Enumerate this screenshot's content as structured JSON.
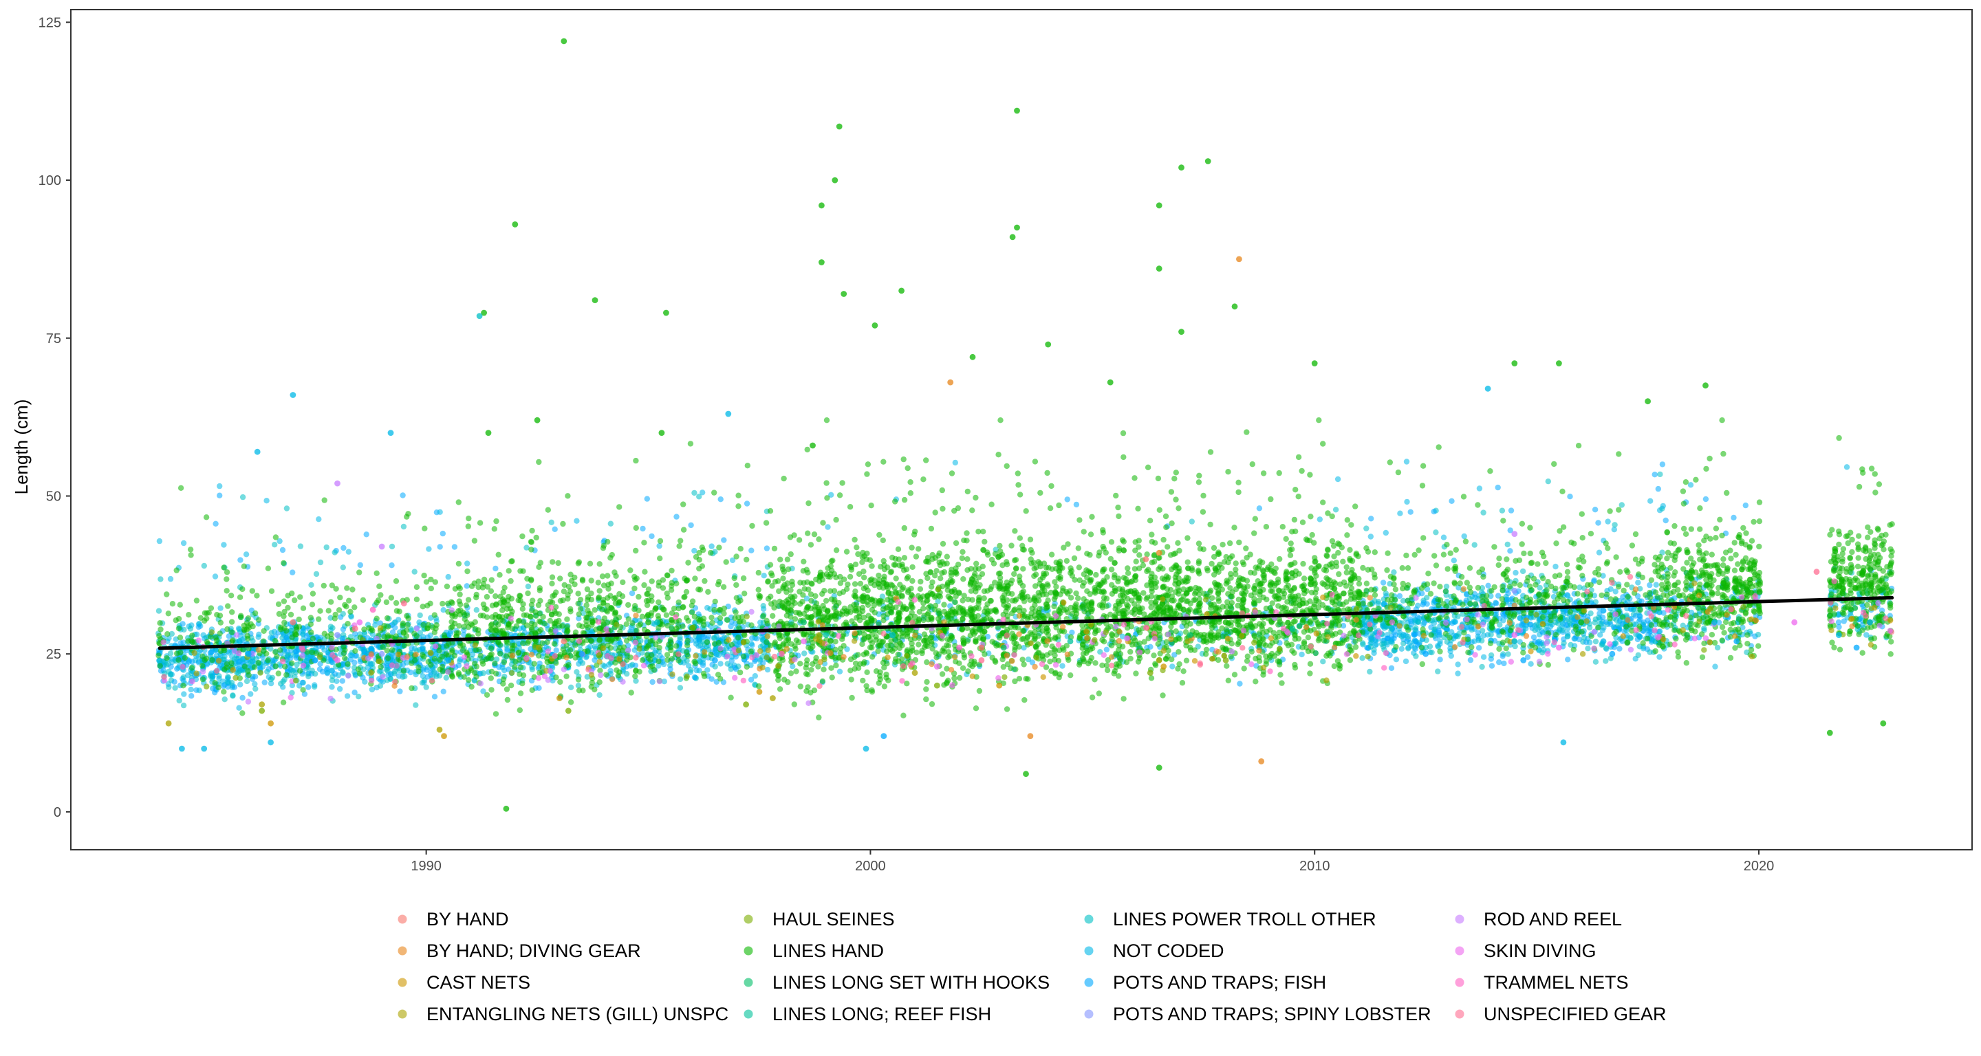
{
  "chart_data": {
    "type": "scatter",
    "title": "",
    "xlabel": "",
    "ylabel": "Length (cm)",
    "xlim": [
      1982.0,
      2024.8
    ],
    "ylim": [
      -6,
      127
    ],
    "x_ticks": [
      1990,
      2000,
      2010,
      2020
    ],
    "y_ticks": [
      0,
      25,
      50,
      75,
      100,
      125
    ],
    "grid": false,
    "legend": {
      "position": "bottom",
      "columns": 4
    },
    "trend_line": {
      "x": [
        1984,
        2023
      ],
      "y": [
        25.9,
        33.9
      ],
      "color": "#000000"
    },
    "series": [
      {
        "name": "BY HAND",
        "color": "#F8766D",
        "points": [
          [
            1987.0,
            30
          ],
          [
            1993.1,
            27
          ],
          [
            2002.5,
            26
          ],
          [
            2006.2,
            40
          ]
        ]
      },
      {
        "name": "BY HAND; DIVING GEAR",
        "color": "#E7861B",
        "points": [
          [
            2001.8,
            68
          ],
          [
            2006.5,
            41
          ],
          [
            2008.3,
            87.5
          ],
          [
            2008.8,
            8
          ],
          [
            2003.6,
            12
          ]
        ]
      },
      {
        "name": "CAST NETS",
        "color": "#CD9600",
        "points": [
          [
            1986.5,
            14
          ],
          [
            1990.4,
            12
          ],
          [
            1993.0,
            18
          ],
          [
            1997.5,
            19
          ],
          [
            2002.9,
            20
          ],
          [
            2006.6,
            23
          ]
        ]
      },
      {
        "name": "ENTANGLING NETS (GILL) UNSPC",
        "color": "#ABA300",
        "points": [
          [
            1984.2,
            14
          ],
          [
            1986.3,
            17
          ],
          [
            1990.3,
            13
          ],
          [
            1997.8,
            18
          ],
          [
            2001.0,
            22
          ],
          [
            2006.5,
            24
          ]
        ]
      },
      {
        "name": "HAUL SEINES",
        "color": "#7CAE00",
        "points": [
          [
            1986.3,
            16
          ],
          [
            1993.2,
            16
          ],
          [
            1997.2,
            17
          ],
          [
            2001.5,
            20
          ],
          [
            2006.3,
            22
          ],
          [
            2008.0,
            24
          ]
        ]
      },
      {
        "name": "LINES HAND",
        "color": "#0CB702",
        "points": [
          [
            1991.8,
            0.5
          ],
          [
            1993.1,
            122
          ],
          [
            1992.0,
            93
          ],
          [
            1991.3,
            79
          ],
          [
            1993.8,
            81
          ],
          [
            1995.4,
            79
          ],
          [
            1999.3,
            108.5
          ],
          [
            1999.2,
            100
          ],
          [
            1998.9,
            96
          ],
          [
            1998.9,
            87
          ],
          [
            1999.4,
            82
          ],
          [
            2000.1,
            77
          ],
          [
            2000.7,
            82.5
          ],
          [
            2003.3,
            111
          ],
          [
            2003.3,
            92.5
          ],
          [
            2003.2,
            91
          ],
          [
            2006.5,
            96
          ],
          [
            2006.5,
            86
          ],
          [
            2007.0,
            102
          ],
          [
            2007.6,
            103
          ],
          [
            2007.0,
            76
          ],
          [
            2008.2,
            80
          ],
          [
            2010.0,
            71
          ],
          [
            2014.5,
            71
          ],
          [
            2015.5,
            71
          ],
          [
            2017.5,
            65
          ],
          [
            2018.8,
            67.5
          ],
          [
            2003.5,
            6
          ],
          [
            2006.5,
            7
          ],
          [
            2022.8,
            14
          ],
          [
            2021.6,
            12.5
          ],
          [
            1991.4,
            60
          ],
          [
            1992.5,
            62
          ],
          [
            1995.3,
            60
          ],
          [
            1998.7,
            58
          ],
          [
            2002.3,
            72
          ],
          [
            2004.0,
            74
          ],
          [
            2005.4,
            68
          ],
          [
            2000.6,
            30
          ],
          [
            2004.5,
            30
          ],
          [
            2008.0,
            30
          ],
          [
            2010.5,
            34
          ],
          [
            2012.0,
            31
          ],
          [
            2014.0,
            30
          ],
          [
            2016.0,
            30
          ],
          [
            2018.5,
            34
          ],
          [
            2019.5,
            35
          ],
          [
            2022.5,
            30
          ],
          [
            1995.0,
            30
          ]
        ]
      },
      {
        "name": "LINES LONG SET WITH HOOKS",
        "color": "#00BE67",
        "points": [
          [
            1998.5,
            30
          ],
          [
            2003.0,
            26
          ],
          [
            2007.2,
            28
          ]
        ]
      },
      {
        "name": "LINES LONG; REEF FISH",
        "color": "#00C19A",
        "points": [
          [
            1999.0,
            28
          ],
          [
            2004.5,
            27
          ],
          [
            2009.5,
            29
          ]
        ]
      },
      {
        "name": "LINES POWER TROLL OTHER",
        "color": "#00BFC4",
        "points": [
          [
            1991.2,
            78.5
          ],
          [
            1995.2,
            30
          ],
          [
            2000.5,
            28
          ]
        ]
      },
      {
        "name": "NOT CODED",
        "color": "#00B8E7",
        "points": [
          [
            1984.5,
            10
          ],
          [
            1985.0,
            10
          ],
          [
            1986.5,
            11
          ],
          [
            1987.0,
            66
          ],
          [
            1996.8,
            63
          ],
          [
            2013.9,
            67
          ],
          [
            1999.9,
            10
          ],
          [
            2015.6,
            11
          ],
          [
            1989.2,
            60
          ],
          [
            1986.2,
            57
          ],
          [
            1985.8,
            27
          ],
          [
            1993.0,
            28
          ],
          [
            2012.0,
            28
          ],
          [
            2014.5,
            27
          ],
          [
            2016.5,
            27
          ],
          [
            2019.0,
            30
          ],
          [
            2021.8,
            28
          ],
          [
            2022.5,
            30
          ]
        ]
      },
      {
        "name": "POTS AND TRAPS; FISH",
        "color": "#00A9FF",
        "points": [
          [
            1986.0,
            25
          ],
          [
            1987.5,
            24
          ],
          [
            1990.5,
            24
          ],
          [
            1993.5,
            25
          ],
          [
            1996.5,
            24
          ],
          [
            2000.3,
            12
          ],
          [
            2012.5,
            25
          ],
          [
            2014.7,
            24
          ],
          [
            2016.7,
            25
          ],
          [
            2019.5,
            27
          ],
          [
            2022.2,
            26
          ]
        ]
      },
      {
        "name": "POTS AND TRAPS; SPINY LOBSTER",
        "color": "#8494FF",
        "points": [
          [
            1988.0,
            28
          ],
          [
            1989.0,
            25
          ],
          [
            2014.5,
            35
          ]
        ]
      },
      {
        "name": "ROD AND REEL",
        "color": "#C77CFF",
        "points": [
          [
            1988.0,
            52
          ],
          [
            1989.0,
            42
          ],
          [
            2014.5,
            44
          ]
        ]
      },
      {
        "name": "SKIN DIVING",
        "color": "#ED68ED",
        "points": [
          [
            1988.0,
            24
          ],
          [
            1988.5,
            30
          ],
          [
            1989.2,
            27
          ],
          [
            1998.5,
            27
          ],
          [
            2001.5,
            23
          ],
          [
            2014.5,
            28
          ],
          [
            2015.5,
            26
          ],
          [
            2020.8,
            30
          ]
        ]
      },
      {
        "name": "TRAMMEL NETS",
        "color": "#FF61C3",
        "points": [
          [
            1987.2,
            26
          ],
          [
            1988.8,
            32
          ],
          [
            1998.0,
            25
          ],
          [
            2002.0,
            26
          ]
        ]
      },
      {
        "name": "UNSPECIFIED GEAR",
        "color": "#FF6C91",
        "points": [
          [
            1988.4,
            29
          ],
          [
            1989.5,
            33
          ],
          [
            2021.3,
            38
          ],
          [
            2002.5,
            24
          ],
          [
            2008.5,
            31
          ]
        ]
      }
    ]
  }
}
